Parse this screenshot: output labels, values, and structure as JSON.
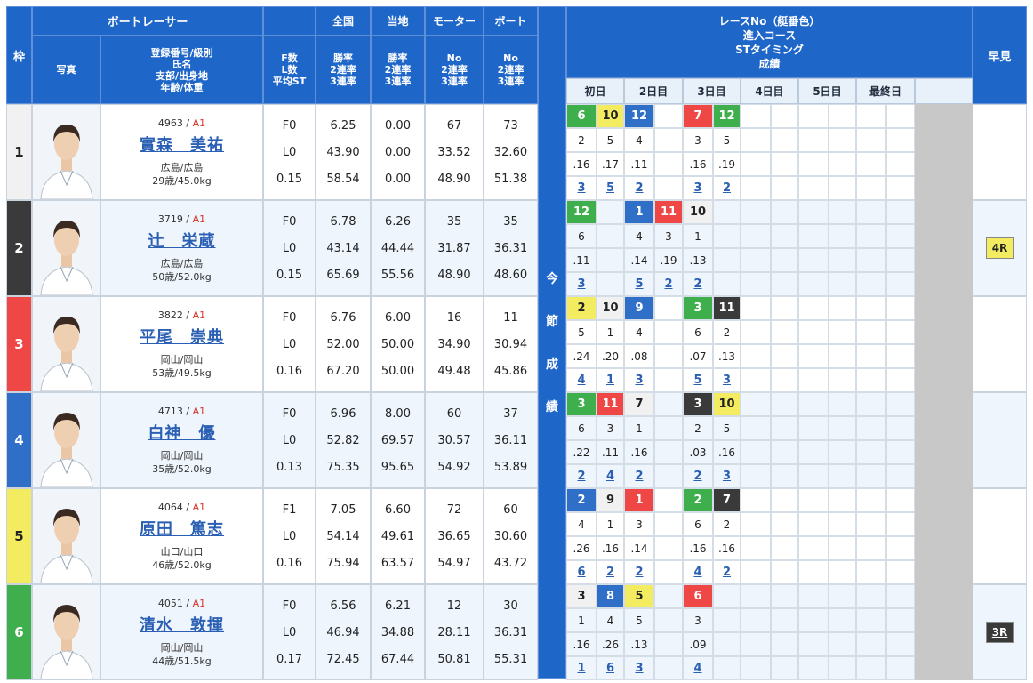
{
  "header": {
    "waku": "枠",
    "racer": "ボートレーサー",
    "photo": "写真",
    "profile_lines": [
      "登録番号/級別",
      "氏名",
      "支部/出身地",
      "年齢/体重"
    ],
    "fl_lines": [
      "F数",
      "L数",
      "平均ST"
    ],
    "national": "全国",
    "local": "当地",
    "motor": "モーター",
    "boat": "ボート",
    "rate_lines": [
      "勝率",
      "2連率",
      "3連率"
    ],
    "mb_lines": [
      "No",
      "2連率",
      "3連率"
    ],
    "results_lines": [
      "レースNo（艇番色）",
      "進入コース",
      "STタイミング",
      "成績"
    ],
    "days": [
      "初日",
      "2日目",
      "3日目",
      "4日目",
      "5日目",
      "最終日"
    ],
    "early": "早見"
  },
  "section_label": [
    "今",
    "節",
    "成",
    "績"
  ],
  "colors": {
    "header_bg": "#1f66c9",
    "waku": [
      "#f1f1f1",
      "#3a3a3a",
      "#ef4646",
      "#2f6fc8",
      "#f3ec60",
      "#3fae4d"
    ],
    "waku_text": [
      "#222222",
      "#ffffff",
      "#ffffff",
      "#ffffff",
      "#222222",
      "#ffffff"
    ],
    "row_bg": [
      "#ffffff",
      "#eef5fc"
    ],
    "badge_4r": "#f3ec60",
    "badge_3r": "#3a3a3a"
  },
  "racers": [
    {
      "waku": "1",
      "reg": "4963",
      "cls": "A1",
      "name": "實森　美祐",
      "branch": "広島/広島",
      "age_weight": "29歳/45.0kg",
      "f": "F0",
      "l": "L0",
      "st": "0.15",
      "nat": [
        "6.25",
        "43.90",
        "58.54"
      ],
      "loc": [
        "0.00",
        "0.00",
        "0.00"
      ],
      "motor": [
        "67",
        "33.52",
        "48.90"
      ],
      "boat": [
        "73",
        "32.60",
        "51.38"
      ],
      "res": [
        [
          {
            "v": "6",
            "c": 5
          },
          {
            "v": "10",
            "c": 4
          },
          {
            "v": "12",
            "c": 3
          },
          {
            "v": "",
            "c": 0
          },
          {
            "v": "7",
            "c": 2
          },
          {
            "v": "12",
            "c": 5
          }
        ],
        [
          "2",
          "5",
          "4",
          "",
          "3",
          "5"
        ],
        [
          ".16",
          ".17",
          ".11",
          "",
          ".16",
          ".19"
        ],
        [
          "3",
          "5",
          "2",
          "",
          "3",
          "2"
        ]
      ],
      "early": ""
    },
    {
      "waku": "2",
      "reg": "3719",
      "cls": "A1",
      "name": "辻　栄蔵",
      "branch": "広島/広島",
      "age_weight": "50歳/52.0kg",
      "f": "F0",
      "l": "L0",
      "st": "0.15",
      "nat": [
        "6.78",
        "43.14",
        "65.69"
      ],
      "loc": [
        "6.26",
        "44.44",
        "55.56"
      ],
      "motor": [
        "35",
        "31.87",
        "48.90"
      ],
      "boat": [
        "35",
        "36.31",
        "48.60"
      ],
      "res": [
        [
          {
            "v": "12",
            "c": 5
          },
          {
            "v": "",
            "c": 0
          },
          {
            "v": "1",
            "c": 3
          },
          {
            "v": "11",
            "c": 2
          },
          {
            "v": "10",
            "c": 0
          },
          {
            "v": "",
            "c": 0
          }
        ],
        [
          "6",
          "",
          "4",
          "3",
          "1",
          ""
        ],
        [
          ".11",
          "",
          ".14",
          ".19",
          ".13",
          ""
        ],
        [
          "3",
          "",
          "5",
          "2",
          "2",
          ""
        ]
      ],
      "early": "4R"
    },
    {
      "waku": "3",
      "reg": "3822",
      "cls": "A1",
      "name": "平尾　崇典",
      "branch": "岡山/岡山",
      "age_weight": "53歳/49.5kg",
      "f": "F0",
      "l": "L0",
      "st": "0.16",
      "nat": [
        "6.76",
        "52.00",
        "67.20"
      ],
      "loc": [
        "6.00",
        "50.00",
        "50.00"
      ],
      "motor": [
        "16",
        "34.90",
        "49.48"
      ],
      "boat": [
        "11",
        "30.94",
        "45.86"
      ],
      "res": [
        [
          {
            "v": "2",
            "c": 4
          },
          {
            "v": "10",
            "c": 0
          },
          {
            "v": "9",
            "c": 3
          },
          {
            "v": "",
            "c": 0
          },
          {
            "v": "3",
            "c": 5
          },
          {
            "v": "11",
            "c": 1
          }
        ],
        [
          "5",
          "1",
          "4",
          "",
          "6",
          "2"
        ],
        [
          ".24",
          ".20",
          ".08",
          "",
          ".07",
          ".13"
        ],
        [
          "4",
          "1",
          "3",
          "",
          "5",
          "3"
        ]
      ],
      "early": ""
    },
    {
      "waku": "4",
      "reg": "4713",
      "cls": "A1",
      "name": "白神　優",
      "branch": "岡山/岡山",
      "age_weight": "35歳/52.0kg",
      "f": "F0",
      "l": "L0",
      "st": "0.13",
      "nat": [
        "6.96",
        "52.82",
        "75.35"
      ],
      "loc": [
        "8.00",
        "69.57",
        "95.65"
      ],
      "motor": [
        "60",
        "30.57",
        "54.92"
      ],
      "boat": [
        "37",
        "36.11",
        "53.89"
      ],
      "res": [
        [
          {
            "v": "3",
            "c": 5
          },
          {
            "v": "11",
            "c": 2
          },
          {
            "v": "7",
            "c": 0
          },
          {
            "v": "",
            "c": 0
          },
          {
            "v": "3",
            "c": 1
          },
          {
            "v": "10",
            "c": 4
          }
        ],
        [
          "6",
          "3",
          "1",
          "",
          "2",
          "5"
        ],
        [
          ".22",
          ".11",
          ".16",
          "",
          ".03",
          ".16"
        ],
        [
          "2",
          "4",
          "2",
          "",
          "2",
          "3"
        ]
      ],
      "early": ""
    },
    {
      "waku": "5",
      "reg": "4064",
      "cls": "A1",
      "name": "原田　篤志",
      "branch": "山口/山口",
      "age_weight": "46歳/52.0kg",
      "f": "F1",
      "l": "L0",
      "st": "0.16",
      "nat": [
        "7.05",
        "54.14",
        "75.94"
      ],
      "loc": [
        "6.60",
        "49.61",
        "63.57"
      ],
      "motor": [
        "72",
        "36.65",
        "54.97"
      ],
      "boat": [
        "60",
        "30.60",
        "43.72"
      ],
      "res": [
        [
          {
            "v": "2",
            "c": 3
          },
          {
            "v": "9",
            "c": 0
          },
          {
            "v": "1",
            "c": 2
          },
          {
            "v": "",
            "c": 0
          },
          {
            "v": "2",
            "c": 5
          },
          {
            "v": "7",
            "c": 1
          }
        ],
        [
          "4",
          "1",
          "3",
          "",
          "6",
          "2"
        ],
        [
          ".26",
          ".16",
          ".14",
          "",
          ".16",
          ".16"
        ],
        [
          "6",
          "2",
          "2",
          "",
          "4",
          "2"
        ]
      ],
      "early": ""
    },
    {
      "waku": "6",
      "reg": "4051",
      "cls": "A1",
      "name": "清水　敦揮",
      "branch": "岡山/岡山",
      "age_weight": "44歳/51.5kg",
      "f": "F0",
      "l": "L0",
      "st": "0.17",
      "nat": [
        "6.56",
        "46.94",
        "72.45"
      ],
      "loc": [
        "6.21",
        "34.88",
        "67.44"
      ],
      "motor": [
        "12",
        "28.11",
        "50.81"
      ],
      "boat": [
        "30",
        "36.31",
        "55.31"
      ],
      "res": [
        [
          {
            "v": "3",
            "c": 0
          },
          {
            "v": "8",
            "c": 3
          },
          {
            "v": "5",
            "c": 4
          },
          {
            "v": "",
            "c": 0
          },
          {
            "v": "6",
            "c": 2
          },
          {
            "v": "",
            "c": 0
          }
        ],
        [
          "1",
          "4",
          "5",
          "",
          "3",
          ""
        ],
        [
          ".16",
          ".26",
          ".13",
          "",
          ".09",
          ""
        ],
        [
          "1",
          "6",
          "3",
          "",
          "4",
          ""
        ]
      ],
      "early": "3R"
    }
  ]
}
